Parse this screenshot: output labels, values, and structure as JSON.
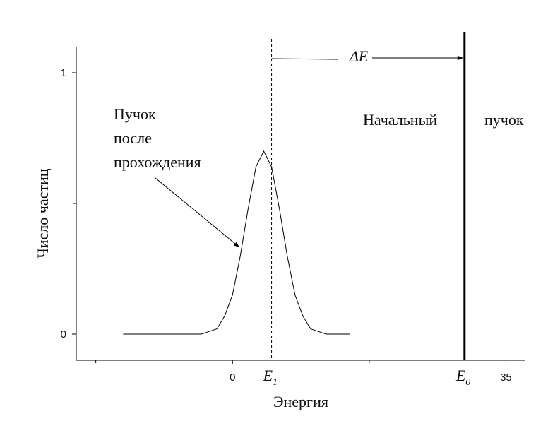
{
  "chart_data": {
    "type": "line",
    "xlabel": "Энергия",
    "ylabel": "Число частиц",
    "x": [
      -14,
      -13,
      -12,
      -11,
      -10,
      -9,
      -8,
      -7,
      -6,
      -5,
      -4,
      -3,
      -2,
      -1,
      0,
      1,
      2,
      3,
      4,
      5,
      6,
      7,
      8,
      9,
      10,
      11,
      12,
      13,
      14,
      15
    ],
    "series": [
      {
        "color": "#000000",
        "values": [
          0,
          0,
          0,
          0,
          0,
          0,
          0,
          0,
          0,
          0,
          0,
          0.01,
          0.02,
          0.07,
          0.15,
          0.3,
          0.48,
          0.64,
          0.7,
          0.64,
          0.48,
          0.3,
          0.15,
          0.07,
          0.02,
          0.01,
          0,
          0,
          0,
          0
        ]
      }
    ],
    "xlim": [
      -20,
      37.4
    ],
    "xticks": [
      0,
      35
    ],
    "xminor_ticks": [
      -17.5,
      17.5
    ],
    "ylim": [
      -0.1,
      1.1
    ],
    "yticks": [
      0,
      1
    ],
    "yminor_ticks": [
      0.5
    ],
    "markers": [
      {
        "name": "E",
        "sub": "1",
        "x": 5,
        "style": "dashed"
      },
      {
        "name": "E",
        "sub": "0",
        "x": 29.7,
        "style": "thick"
      }
    ],
    "annotations": {
      "delta": "ΔE",
      "after": [
        "Пучок",
        "после",
        "прохождения"
      ],
      "initial": [
        "Начальный",
        "пучок"
      ]
    }
  }
}
